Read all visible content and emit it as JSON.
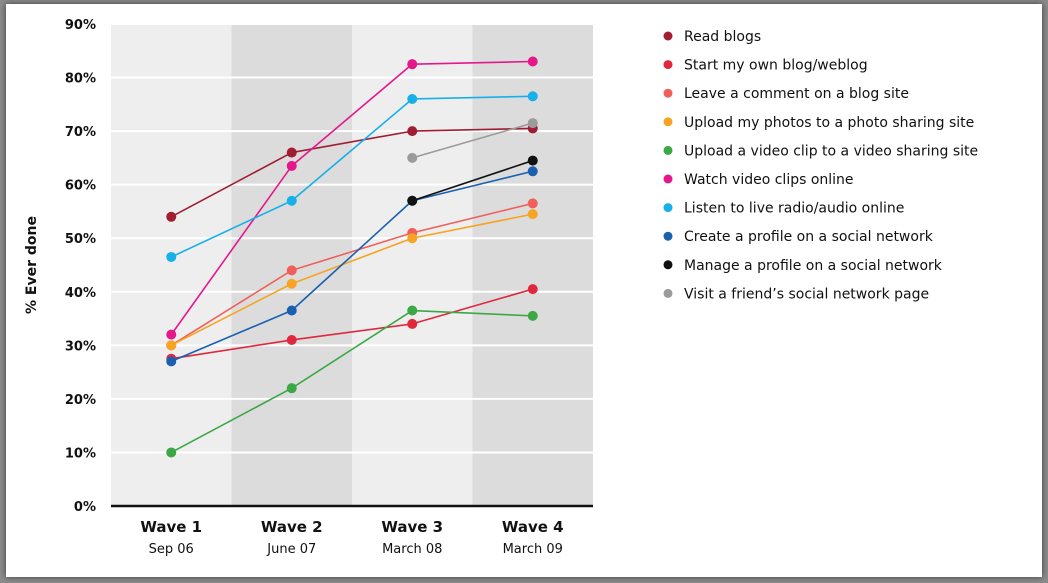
{
  "chart_data": {
    "type": "line",
    "ylabel": "% Ever done",
    "ylim": [
      0,
      90
    ],
    "yticks": [
      0,
      10,
      20,
      30,
      40,
      50,
      60,
      70,
      80,
      90
    ],
    "ytick_labels": [
      "0%",
      "10%",
      "20%",
      "30%",
      "40%",
      "50%",
      "60%",
      "70%",
      "80%",
      "90%"
    ],
    "categories": [
      "Wave 1",
      "Wave 2",
      "Wave 3",
      "Wave 4"
    ],
    "category_sublabels": [
      "Sep 06",
      "June 07",
      "March 08",
      "March 09"
    ],
    "grid": true,
    "legend_position": "right",
    "band_colors": [
      "#eeeeee",
      "#dcdcdc",
      "#eeeeee",
      "#dcdcdc"
    ],
    "series": [
      {
        "name": "Read blogs",
        "color": "#a01d32",
        "values": [
          54,
          66,
          70,
          70.5
        ]
      },
      {
        "name": "Start my own blog/weblog",
        "color": "#e0283c",
        "values": [
          27.5,
          31,
          34,
          40.5
        ]
      },
      {
        "name": "Leave a comment on a blog site",
        "color": "#f0605a",
        "values": [
          30,
          44,
          51,
          56.5
        ]
      },
      {
        "name": "Upload my photos to a photo sharing site",
        "color": "#f7a423",
        "values": [
          30,
          41.5,
          50,
          54.5
        ]
      },
      {
        "name": "Upload a video clip to a video sharing site",
        "color": "#3aa845",
        "values": [
          10,
          22,
          36.5,
          35.5
        ]
      },
      {
        "name": "Watch video clips online",
        "color": "#e5188b",
        "values": [
          32,
          63.5,
          82.5,
          83
        ]
      },
      {
        "name": "Listen to live radio/audio online",
        "color": "#17b0e8",
        "values": [
          46.5,
          57,
          76,
          76.5
        ]
      },
      {
        "name": "Create a profile on a social network",
        "color": "#1a5fb0",
        "values": [
          27,
          36.5,
          57,
          62.5
        ]
      },
      {
        "name": "Manage a profile on a social network",
        "color": "#111111",
        "values": [
          null,
          null,
          57,
          64.5
        ]
      },
      {
        "name": "Visit a friend’s social network page",
        "color": "#9b9b9b",
        "values": [
          null,
          null,
          65,
          71.5
        ]
      }
    ]
  }
}
